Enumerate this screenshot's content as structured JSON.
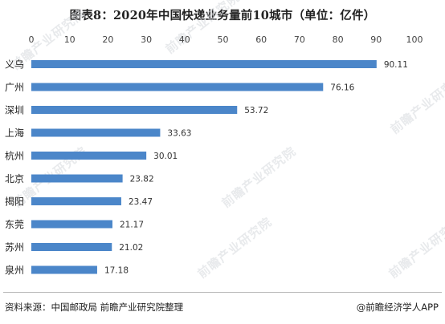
{
  "title": "图表8：2020年中国快递业务量前10城市（单位：亿件）",
  "watermark": "前瞻产业研究院",
  "chart_data": {
    "type": "bar",
    "orientation": "horizontal",
    "categories": [
      "义乌",
      "广州",
      "深圳",
      "上海",
      "杭州",
      "北京",
      "揭阳",
      "东莞",
      "苏州",
      "泉州"
    ],
    "values": [
      90.11,
      76.16,
      53.72,
      33.63,
      30.01,
      23.82,
      23.47,
      21.17,
      21.02,
      17.18
    ],
    "value_labels": [
      "90.11",
      "76.16",
      "53.72",
      "33.63",
      "30.01",
      "23.82",
      "23.47",
      "21.17",
      "21.02",
      "17.18"
    ],
    "xlim": [
      0,
      100
    ],
    "xticks": [
      0,
      10,
      20,
      30,
      40,
      50,
      60,
      70,
      80,
      90,
      100
    ],
    "xtick_labels": [
      "0",
      "10",
      "20",
      "30",
      "40",
      "50",
      "60",
      "70",
      "80",
      "90",
      "100"
    ],
    "axis_position": "top",
    "grid": false,
    "bar_color": "#4b86c9"
  },
  "footer": {
    "source": "资料来源：中国邮政局 前瞻产业研究院整理",
    "brand": "@前瞻经济学人APP"
  }
}
